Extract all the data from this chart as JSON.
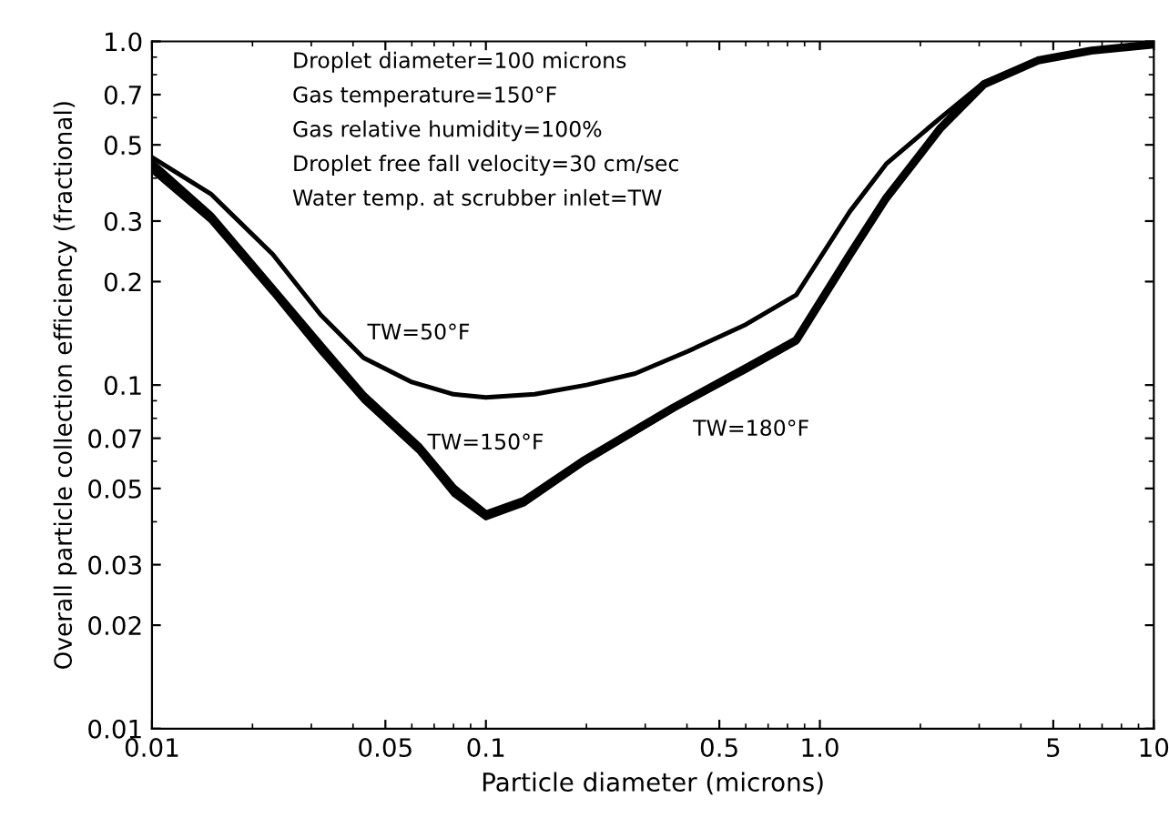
{
  "chart_data": {
    "type": "line",
    "xlabel": "Particle diameter (microns)",
    "ylabel": "Overall particle collection efficiency (fractional)",
    "log": "xy",
    "xlim": [
      0.01,
      10
    ],
    "ylim": [
      0.01,
      1.0
    ],
    "xticks": [
      0.01,
      0.05,
      0.1,
      0.5,
      {
        "value": 1,
        "label": "1.0"
      },
      5,
      10
    ],
    "yticks": [
      0.01,
      0.02,
      0.03,
      0.05,
      0.07,
      0.1,
      0.2,
      0.3,
      0.5,
      0.7,
      {
        "value": 1,
        "label": "1.0"
      }
    ],
    "grid": false,
    "marker": "none",
    "line_style": "solid",
    "series": [
      {
        "color": "#000000",
        "x": [
          0.01,
          0.015,
          0.023,
          0.032,
          0.043,
          0.06,
          0.08,
          0.1,
          0.14,
          0.2,
          0.28,
          0.4,
          0.6,
          0.85,
          1.23,
          1.58,
          2.3,
          3.1,
          4.5,
          6.5,
          10
        ],
        "values": [
          0.46,
          0.36,
          0.24,
          0.16,
          0.12,
          0.102,
          0.094,
          0.092,
          0.094,
          0.1,
          0.108,
          0.125,
          0.15,
          0.183,
          0.32,
          0.44,
          0.6,
          0.76,
          0.88,
          0.94,
          0.98
        ]
      },
      {
        "color": "#000000",
        "x": [
          0.01,
          0.015,
          0.023,
          0.032,
          0.043,
          0.063,
          0.08,
          0.1,
          0.13,
          0.195,
          0.365,
          0.6,
          0.85,
          1.23,
          1.58,
          2.3,
          3.1,
          4.5,
          6.5,
          10
        ],
        "values": [
          0.42,
          0.3,
          0.185,
          0.125,
          0.09,
          0.064,
          0.048,
          0.041,
          0.045,
          0.059,
          0.085,
          0.11,
          0.133,
          0.235,
          0.345,
          0.56,
          0.75,
          0.88,
          0.94,
          0.98
        ]
      },
      {
        "color": "#000000",
        "x": [
          0.01,
          0.015,
          0.023,
          0.032,
          0.043,
          0.063,
          0.08,
          0.1,
          0.13,
          0.195,
          0.365,
          0.6,
          0.85,
          1.23,
          1.58,
          2.3,
          3.1,
          4.5,
          6.5,
          10
        ],
        "values": [
          0.44,
          0.31,
          0.19,
          0.13,
          0.093,
          0.066,
          0.05,
          0.042,
          0.046,
          0.06,
          0.086,
          0.112,
          0.135,
          0.24,
          0.35,
          0.56,
          0.75,
          0.88,
          0.94,
          0.98
        ]
      }
    ],
    "annotations": [
      "Droplet diameter=100 microns",
      "Gas temperature=150°F",
      "Gas relative humidity=100%",
      "Droplet free fall velocity=30 cm/sec",
      "Water temp. at scrubber inlet=TW",
      "TW=50°F",
      "TW=150°F",
      "TW=180°F"
    ]
  }
}
